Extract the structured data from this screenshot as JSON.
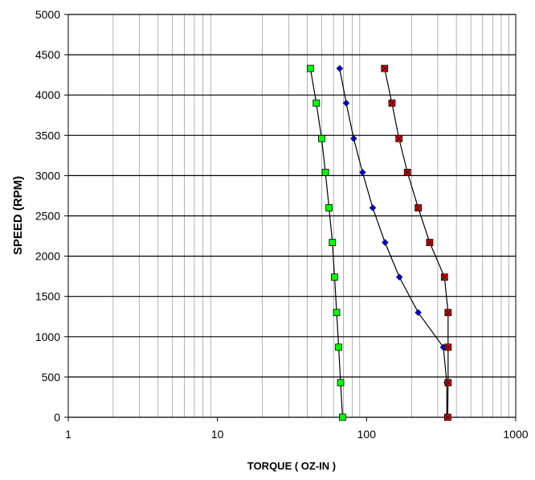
{
  "chart_data": {
    "type": "scatter",
    "xlabel": "TORQUE ( OZ-IN )",
    "ylabel": "SPEED (RPM)",
    "xscale": "log",
    "xlim": [
      1,
      1000
    ],
    "ylim": [
      0,
      5000
    ],
    "x_ticks": [
      "1",
      "10",
      "100",
      "1000"
    ],
    "y_ticks": [
      "0",
      "500",
      "1000",
      "1500",
      "2000",
      "2500",
      "3000",
      "3500",
      "4000",
      "4500",
      "5000"
    ],
    "grid": true,
    "legend": "none",
    "series": [
      {
        "color": "#00ff00",
        "marker": "square",
        "x": [
          42,
          46,
          50,
          53,
          56,
          59,
          61,
          63,
          65,
          67,
          69
        ],
        "y": [
          4330,
          3900,
          3460,
          3040,
          2600,
          2170,
          1740,
          1300,
          870,
          430,
          0
        ]
      },
      {
        "color": "#0000cc",
        "marker": "diamond",
        "x": [
          66,
          73,
          82,
          94,
          110,
          133,
          166,
          222,
          327,
          345,
          345
        ],
        "y": [
          4330,
          3900,
          3460,
          3040,
          2600,
          2170,
          1740,
          1300,
          870,
          430,
          0
        ]
      },
      {
        "color": "#ff0000",
        "marker": "x-square",
        "x": [
          132,
          148,
          165,
          188,
          222,
          265,
          333,
          352,
          352,
          352,
          350
        ],
        "y": [
          4330,
          3900,
          3460,
          3040,
          2600,
          2170,
          1740,
          1300,
          870,
          430,
          0
        ]
      }
    ]
  }
}
